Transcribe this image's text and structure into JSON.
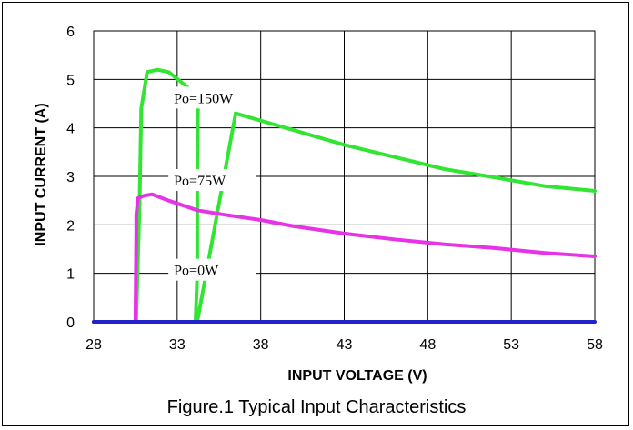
{
  "caption": "Figure.1 Typical Input Characteristics",
  "chart_data": {
    "type": "line",
    "xlabel": "INPUT VOLTAGE (V)",
    "ylabel": "INPUT CURRENT (A)",
    "xlim": [
      28,
      58
    ],
    "ylim": [
      0,
      6
    ],
    "xticks": [
      28,
      33,
      38,
      43,
      48,
      53,
      58
    ],
    "yticks": [
      0,
      1,
      2,
      3,
      4,
      5,
      6
    ],
    "grid": true,
    "series": [
      {
        "name": "Po=150W",
        "color": "#33e533",
        "label_at": [
          32.8,
          4.55
        ],
        "x": [
          28.0,
          30.55,
          30.75,
          30.85,
          31.2,
          31.8,
          32.5,
          34.2,
          34.25,
          34.2,
          34.2,
          34.1,
          34.15,
          34.2,
          36.5,
          40.0,
          43.0,
          46.0,
          49.0,
          52.0,
          55.0,
          58.0
        ],
        "y": [
          0.0,
          0.0,
          2.5,
          4.4,
          5.15,
          5.2,
          5.15,
          4.68,
          4.6,
          3.0,
          1.0,
          0.0,
          0.0,
          0.0,
          4.3,
          3.95,
          3.65,
          3.4,
          3.15,
          2.98,
          2.8,
          2.7
        ]
      },
      {
        "name": "Po=75W",
        "color": "#e733e7",
        "label_at": [
          32.8,
          2.85
        ],
        "x": [
          28.0,
          30.5,
          30.55,
          30.55,
          30.65,
          31.0,
          31.5,
          32.5,
          34.2,
          36.0,
          38.0,
          40.0,
          43.0,
          46.0,
          49.0,
          52.0,
          55.0,
          58.0
        ],
        "y": [
          0.0,
          0.0,
          1.8,
          2.2,
          2.55,
          2.6,
          2.63,
          2.5,
          2.3,
          2.2,
          2.1,
          1.97,
          1.82,
          1.7,
          1.6,
          1.52,
          1.42,
          1.35
        ]
      },
      {
        "name": "Po=0W",
        "color": "#2222cc",
        "label_at": [
          32.8,
          1.0
        ],
        "x": [
          28.0,
          58.0
        ],
        "y": [
          0.0,
          0.0
        ]
      }
    ]
  }
}
